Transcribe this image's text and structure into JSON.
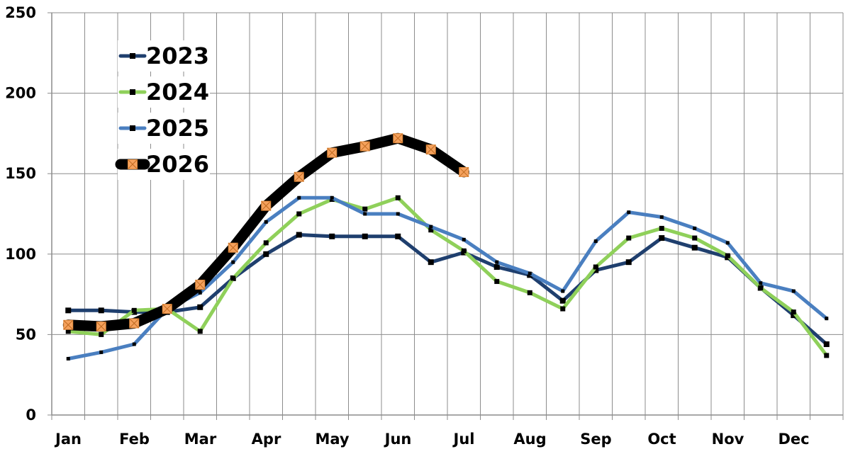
{
  "chart_data": {
    "type": "line",
    "title": "",
    "xlabel": "",
    "ylabel": "",
    "ylim": [
      0,
      250
    ],
    "yticks": [
      0,
      50,
      100,
      150,
      200,
      250
    ],
    "grid": true,
    "legend_position": "top-left",
    "x_tick_labels": [
      "Jan",
      "Feb",
      "Mar",
      "Apr",
      "May",
      "Jun",
      "Jul",
      "Aug",
      "Sep",
      "Oct",
      "Nov",
      "Dec"
    ],
    "x_points": [
      "Jan",
      "Jan-Feb",
      "Feb",
      "Feb-Mar",
      "Mar",
      "Mar-Apr",
      "Apr",
      "Apr-May",
      "May",
      "May-Jun",
      "Jun",
      "Jun-Jul",
      "Jul",
      "Jul-Aug",
      "Aug",
      "Aug-Sep",
      "Sep",
      "Sep-Oct",
      "Oct",
      "Oct-Nov",
      "Nov",
      "Nov-Dec",
      "Dec",
      "Dec-end"
    ],
    "series": [
      {
        "name": "2023",
        "color": "#1f3f6e",
        "values": [
          65,
          65,
          64,
          64,
          67,
          85,
          100,
          112,
          111,
          111,
          111,
          95,
          101,
          92,
          87,
          71,
          90,
          95,
          110,
          104,
          98,
          79,
          62,
          44
        ]
      },
      {
        "name": "2024",
        "color": "#8fd05a",
        "values": [
          52,
          50,
          65,
          66,
          52,
          85,
          107,
          125,
          134,
          128,
          135,
          115,
          102,
          83,
          76,
          66,
          92,
          110,
          116,
          110,
          99,
          79,
          64,
          37
        ]
      },
      {
        "name": "2025",
        "color": "#4a7fc0",
        "values": [
          35,
          39,
          44,
          66,
          76,
          95,
          120,
          135,
          135,
          125,
          125,
          117,
          109,
          95,
          88,
          77,
          108,
          126,
          123,
          116,
          107,
          82,
          77,
          60
        ]
      },
      {
        "name": "2026",
        "color": "#000000",
        "marker_color": "#f4a15d",
        "values": [
          56,
          55,
          57,
          66,
          81,
          104,
          130,
          148,
          163,
          167,
          172,
          165,
          151
        ]
      }
    ]
  }
}
